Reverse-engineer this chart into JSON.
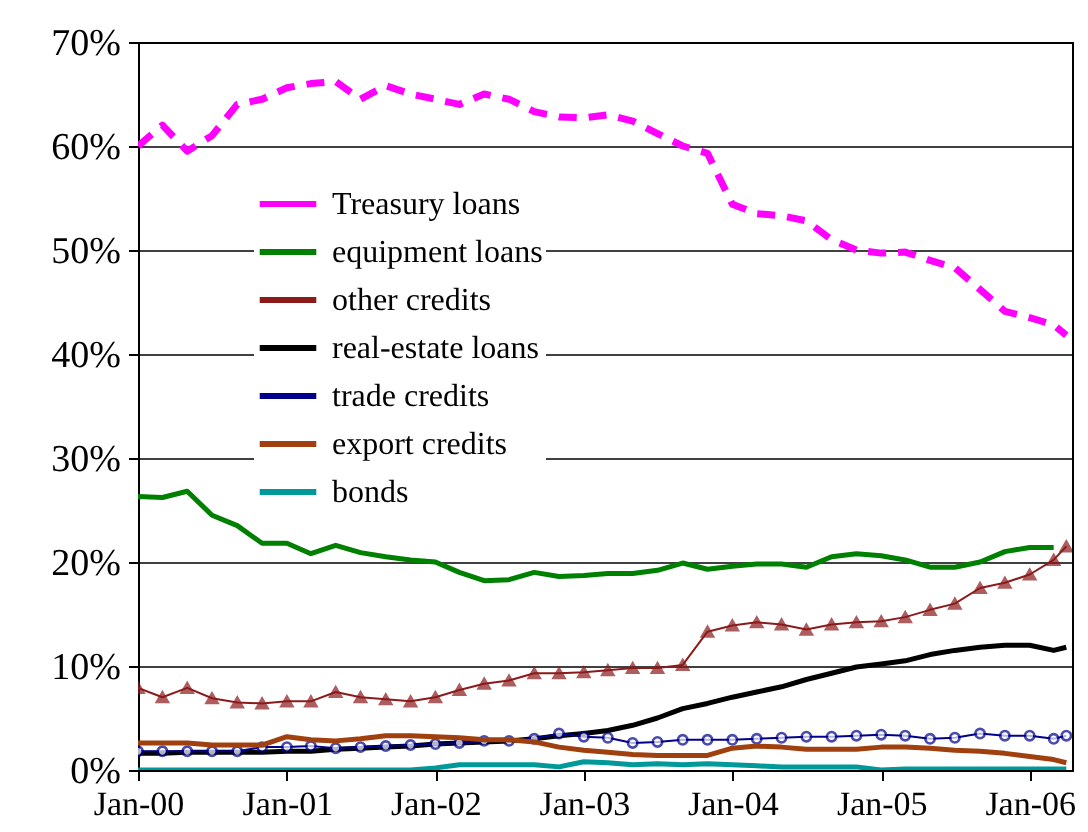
{
  "chart_data": {
    "type": "line",
    "x": [
      "2000-01",
      "2000-03",
      "2000-05",
      "2000-07",
      "2000-09",
      "2000-11",
      "2001-01",
      "2001-03",
      "2001-05",
      "2001-07",
      "2001-09",
      "2001-11",
      "2002-01",
      "2002-03",
      "2002-05",
      "2002-07",
      "2002-09",
      "2002-11",
      "2003-01",
      "2003-03",
      "2003-05",
      "2003-07",
      "2003-09",
      "2003-11",
      "2004-01",
      "2004-03",
      "2004-05",
      "2004-07",
      "2004-09",
      "2004-11",
      "2005-01",
      "2005-03",
      "2005-05",
      "2005-07",
      "2005-09",
      "2005-11",
      "2006-01",
      "2006-03",
      "2006-04"
    ],
    "series": [
      {
        "name": "Treasury loans",
        "color": "#ff00ff",
        "line_style": "dashed",
        "marker": "none",
        "values": [
          60,
          62,
          59.5,
          61,
          64,
          64.5,
          65.6,
          66,
          66.2,
          64.5,
          65.8,
          65,
          64.5,
          64,
          65,
          64.5,
          63.3,
          62.8,
          62.7,
          63,
          62.4,
          61.2,
          60,
          59.3,
          54.4,
          53.5,
          53.3,
          52.8,
          51,
          50,
          49.7,
          49.8,
          49,
          48.3,
          46.2,
          44.1,
          43.5,
          42.8,
          41.8
        ]
      },
      {
        "name": "equipment loans",
        "color": "#008000",
        "line_style": "solid",
        "marker": "none",
        "values": [
          26.3,
          26.2,
          26.8,
          24.5,
          23.5,
          21.8,
          21.8,
          20.8,
          21.6,
          20.9,
          20.5,
          20.2,
          20,
          19,
          18.2,
          18.3,
          19,
          18.6,
          18.7,
          18.9,
          18.9,
          19.2,
          19.9,
          19.3,
          19.6,
          19.8,
          19.8,
          19.5,
          20.5,
          20.8,
          20.6,
          20.2,
          19.5,
          19.5,
          20,
          21,
          21.4,
          21.4,
          null
        ]
      },
      {
        "name": "other credits",
        "color": "#8b1a1a",
        "line_style": "solid",
        "marker": "triangle",
        "values": [
          7.9,
          7,
          7.9,
          6.9,
          6.5,
          6.4,
          6.6,
          6.6,
          7.5,
          7,
          6.8,
          6.6,
          7,
          7.7,
          8.3,
          8.6,
          9.3,
          9.3,
          9.4,
          9.6,
          9.8,
          9.8,
          10.1,
          13.3,
          13.9,
          14.2,
          14,
          13.5,
          14,
          14.2,
          14.3,
          14.7,
          15.4,
          16,
          17.5,
          18,
          18.8,
          20.2,
          21.5
        ]
      },
      {
        "name": "real-estate loans",
        "color": "#000000",
        "line_style": "solid",
        "marker": "none",
        "values": [
          1.6,
          1.6,
          1.7,
          1.7,
          1.7,
          1.7,
          1.8,
          1.8,
          2,
          2.1,
          2.2,
          2.3,
          2.5,
          2.6,
          2.7,
          2.8,
          3,
          3.3,
          3.5,
          3.8,
          4.3,
          5,
          5.9,
          6.4,
          7,
          7.5,
          8,
          8.7,
          9.3,
          9.9,
          10.2,
          10.5,
          11.1,
          11.5,
          11.8,
          12,
          12,
          11.5,
          11.8
        ]
      },
      {
        "name": "trade credits",
        "color": "#00008b",
        "line_style": "solid",
        "marker": "circle",
        "values": [
          1.8,
          1.8,
          1.8,
          1.8,
          1.8,
          2.2,
          2.2,
          2.3,
          2.1,
          2.2,
          2.3,
          2.4,
          2.5,
          2.6,
          2.8,
          2.8,
          3,
          3.5,
          3.2,
          3.1,
          2.6,
          2.7,
          2.9,
          2.9,
          2.9,
          3,
          3.1,
          3.2,
          3.2,
          3.3,
          3.4,
          3.3,
          3,
          3.1,
          3.5,
          3.3,
          3.3,
          3,
          3.3
        ]
      },
      {
        "name": "export credits",
        "color": "#a0400f",
        "line_style": "solid",
        "marker": "none",
        "values": [
          2.6,
          2.6,
          2.6,
          2.4,
          2.4,
          2.4,
          3.2,
          2.9,
          2.8,
          3,
          3.3,
          3.3,
          3.2,
          3.1,
          2.9,
          2.9,
          2.7,
          2.2,
          1.9,
          1.7,
          1.5,
          1.4,
          1.4,
          1.4,
          2.1,
          2.3,
          2.2,
          2,
          2,
          2,
          2.2,
          2.2,
          2.1,
          1.9,
          1.8,
          1.6,
          1.3,
          1,
          0.7
        ]
      },
      {
        "name": "bonds",
        "color": "#009999",
        "line_style": "solid",
        "marker": "none",
        "values": [
          0,
          0,
          0,
          0,
          0,
          0,
          0,
          0,
          0,
          0,
          0,
          0,
          0.2,
          0.5,
          0.5,
          0.5,
          0.5,
          0.3,
          0.8,
          0.7,
          0.5,
          0.6,
          0.5,
          0.6,
          0.5,
          0.4,
          0.3,
          0.3,
          0.3,
          0.3,
          0,
          0.1,
          0.1,
          0.1,
          0.1,
          0.1,
          0.1,
          0.1,
          0.1
        ]
      }
    ],
    "xlim": [
      "2000-01",
      "2006-04-15"
    ],
    "xticks": [
      {
        "value": "2000-01",
        "label": "Jan-00"
      },
      {
        "value": "2001-01",
        "label": "Jan-01"
      },
      {
        "value": "2002-01",
        "label": "Jan-02"
      },
      {
        "value": "2003-01",
        "label": "Jan-03"
      },
      {
        "value": "2004-01",
        "label": "Jan-04"
      },
      {
        "value": "2005-01",
        "label": "Jan-05"
      },
      {
        "value": "2006-01",
        "label": "Jan-06"
      }
    ],
    "ylim": [
      0,
      70
    ],
    "yticks": [
      {
        "value": 0,
        "label": "0%"
      },
      {
        "value": 10,
        "label": "10%"
      },
      {
        "value": 20,
        "label": "20%"
      },
      {
        "value": 30,
        "label": "30%"
      },
      {
        "value": 40,
        "label": "40%"
      },
      {
        "value": 50,
        "label": "50%"
      },
      {
        "value": 60,
        "label": "60%"
      },
      {
        "value": 70,
        "label": "70%"
      }
    ],
    "grid": "y",
    "legend": "top left"
  }
}
